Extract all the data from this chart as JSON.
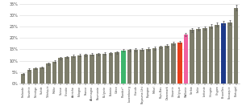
{
  "labels": [
    "Finlande",
    "Slovénie",
    "Norvège",
    "Suède",
    "Tchéquie",
    "Malte",
    "Suisse",
    "Croatie",
    "Autriche",
    "Pologne",
    "France",
    "Allemagne",
    "Roumanie",
    "Bulgarie",
    "Estonie",
    "Grèce",
    "Flandre*",
    "Luxembourg",
    "Irlande",
    "Royaume-Uni",
    "Espagne",
    "Métal",
    "Pays-Bas",
    "Danemark",
    "Lituanie",
    "Belgique",
    "Wallonie",
    "Serbie",
    "Italie",
    "Lettonie",
    "Hongrie",
    "Chypre",
    "Bruxelles",
    "Slovaquie",
    "Portugal"
  ],
  "values": [
    4.2,
    6.1,
    6.6,
    7.1,
    8.6,
    9.6,
    11.1,
    11.6,
    12.1,
    12.4,
    12.5,
    12.8,
    12.9,
    13.1,
    13.2,
    13.6,
    14.6,
    14.7,
    14.8,
    14.9,
    15.1,
    15.5,
    16.1,
    16.6,
    17.6,
    18.1,
    21.5,
    23.5,
    24.1,
    24.3,
    25.2,
    25.8,
    26.6,
    26.9,
    33.2
  ],
  "errors": [
    0.3,
    0.4,
    0.4,
    0.4,
    0.5,
    0.6,
    0.5,
    0.5,
    0.5,
    0.5,
    0.4,
    0.4,
    0.5,
    0.6,
    0.6,
    0.6,
    0.7,
    0.5,
    0.6,
    0.5,
    0.6,
    0.6,
    0.6,
    0.7,
    0.7,
    0.6,
    0.8,
    0.8,
    0.7,
    0.8,
    0.8,
    0.9,
    1.0,
    1.0,
    1.2
  ],
  "colors": [
    "#7d7d6b",
    "#7d7d6b",
    "#7d7d6b",
    "#7d7d6b",
    "#7d7d6b",
    "#7d7d6b",
    "#7d7d6b",
    "#7d7d6b",
    "#7d7d6b",
    "#7d7d6b",
    "#7d7d6b",
    "#7d7d6b",
    "#7d7d6b",
    "#7d7d6b",
    "#7d7d6b",
    "#7d7d6b",
    "#3db56c",
    "#7d7d6b",
    "#7d7d6b",
    "#7d7d6b",
    "#7d7d6b",
    "#7d7d6b",
    "#7d7d6b",
    "#7d7d6b",
    "#7d7d6b",
    "#e8401c",
    "#f060a0",
    "#7d7d6b",
    "#7d7d6b",
    "#7d7d6b",
    "#7d7d6b",
    "#7d7d6b",
    "#1e3a8a",
    "#7d7d6b",
    "#7d7d6b"
  ],
  "ylim": [
    0,
    35
  ],
  "yticks": [
    0,
    5,
    10,
    15,
    20,
    25,
    30,
    35
  ],
  "ytick_labels": [
    "0%",
    "5%",
    "10%",
    "15%",
    "20%",
    "25%",
    "30%",
    "35%"
  ],
  "error_color": "#555555",
  "bg_color": "#ffffff",
  "grid_color": "#d8d8d8"
}
